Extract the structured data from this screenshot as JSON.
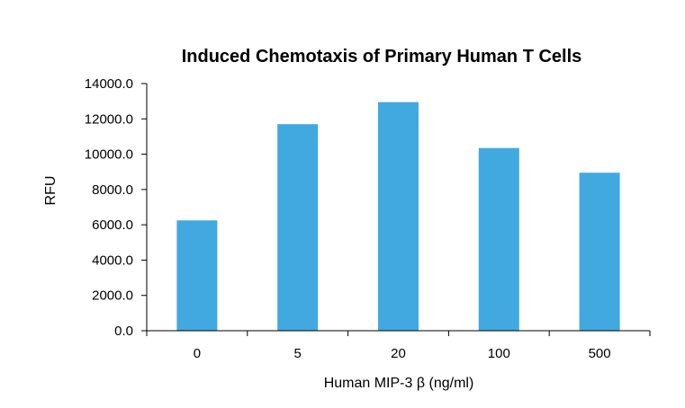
{
  "chart_data": {
    "type": "bar",
    "title": "Induced Chemotaxis of Primary Human T Cells",
    "xlabel": "Human MIP-3 β (ng/ml)",
    "ylabel": "RFU",
    "categories": [
      "0",
      "5",
      "20",
      "100",
      "500"
    ],
    "values": [
      6250,
      11700,
      12950,
      10350,
      8950
    ],
    "ylim": [
      0,
      14000
    ],
    "yticks": [
      0,
      2000,
      4000,
      6000,
      8000,
      10000,
      12000,
      14000
    ],
    "ytick_labels": [
      "0.0",
      "2000.0",
      "4000.0",
      "6000.0",
      "8000.0",
      "10000.0",
      "12000.0",
      "14000.0"
    ],
    "bar_color": "#41a9e0",
    "grid": false,
    "legend": "none"
  }
}
